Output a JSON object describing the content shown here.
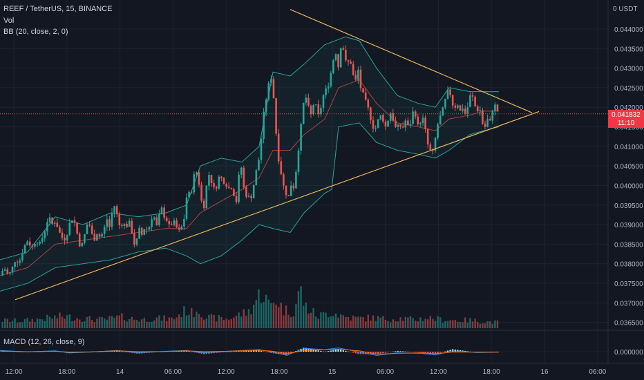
{
  "header": {
    "symbol": "REEF / TetherUS, 15, BINANCE",
    "vol_label": "Vol",
    "bb_label": "BB (20, close, 2, 0)",
    "macd_label": "MACD (12, 26, close, 9)"
  },
  "price_tag": {
    "price": "0.041832",
    "countdown": "11:10"
  },
  "colors": {
    "background": "#131722",
    "up": "#26a69a",
    "down": "#ef5350",
    "bb_band": "#26a69a",
    "bb_basis": "#ef5350",
    "trendline": "#e8b65a",
    "macd_line": "#2196f3",
    "signal_line": "#ff6d00"
  },
  "chart_data": [
    {
      "type": "candlestick",
      "title": "REEF / TetherUS, 15, BINANCE",
      "x_ticks": [
        "12:00",
        "18:00",
        "14",
        "06:00",
        "12:00",
        "18:00",
        "15",
        "06:00",
        "12:00",
        "18:00",
        "16",
        "06:00"
      ],
      "y_ticks": [
        "0.044000",
        "0.043500",
        "0.043000",
        "0.042500",
        "0.042000",
        "0.041500",
        "0.041000",
        "0.040500",
        "0.040000",
        "0.039500",
        "0.039000",
        "0.038500",
        "0.038000",
        "0.037500",
        "0.037000",
        "0.036500"
      ],
      "y_axis_top_label": "0 USDT",
      "ylim": [
        0.0363,
        0.0446
      ],
      "last_price": 0.041832,
      "close_path": [
        [
          0,
          0.0377
        ],
        [
          6,
          0.0379
        ],
        [
          12,
          0.0377
        ],
        [
          16,
          0.0378
        ],
        [
          22,
          0.0381
        ],
        [
          28,
          0.03805
        ],
        [
          34,
          0.0384
        ],
        [
          40,
          0.0386
        ],
        [
          46,
          0.0384
        ],
        [
          52,
          0.0386
        ],
        [
          58,
          0.0385
        ],
        [
          64,
          0.0388
        ],
        [
          70,
          0.0392
        ],
        [
          76,
          0.039
        ],
        [
          80,
          0.0391
        ],
        [
          86,
          0.0388
        ],
        [
          92,
          0.0386
        ],
        [
          96,
          0.0387
        ],
        [
          100,
          0.039
        ],
        [
          106,
          0.0392
        ],
        [
          110,
          0.0389
        ],
        [
          115,
          0.0385
        ],
        [
          120,
          0.0385
        ],
        [
          124,
          0.0389
        ],
        [
          128,
          0.0391
        ],
        [
          132,
          0.0388
        ],
        [
          136,
          0.0386
        ],
        [
          140,
          0.0388
        ],
        [
          144,
          0.0387
        ],
        [
          150,
          0.0388
        ],
        [
          154,
          0.0392
        ],
        [
          158,
          0.0389
        ],
        [
          162,
          0.0393
        ],
        [
          166,
          0.0395
        ],
        [
          170,
          0.0392
        ],
        [
          174,
          0.0389
        ],
        [
          178,
          0.0391
        ],
        [
          182,
          0.0389
        ],
        [
          186,
          0.0391
        ],
        [
          190,
          0.0389
        ],
        [
          194,
          0.0385
        ],
        [
          198,
          0.0386
        ],
        [
          202,
          0.0389
        ],
        [
          206,
          0.0387
        ],
        [
          210,
          0.039
        ],
        [
          214,
          0.0388
        ],
        [
          218,
          0.0391
        ],
        [
          222,
          0.0393
        ],
        [
          226,
          0.0389
        ],
        [
          230,
          0.0392
        ],
        [
          234,
          0.0394
        ],
        [
          238,
          0.0392
        ],
        [
          242,
          0.0391
        ],
        [
          246,
          0.0389
        ],
        [
          250,
          0.0391
        ],
        [
          254,
          0.039
        ],
        [
          258,
          0.0388
        ],
        [
          262,
          0.0389
        ],
        [
          266,
          0.0391
        ],
        [
          270,
          0.0397
        ],
        [
          274,
          0.0398
        ],
        [
          278,
          0.0399
        ],
        [
          282,
          0.0404
        ],
        [
          286,
          0.0403
        ],
        [
          290,
          0.0398
        ],
        [
          294,
          0.0393
        ],
        [
          298,
          0.0399
        ],
        [
          302,
          0.0403
        ],
        [
          306,
          0.0401
        ],
        [
          310,
          0.0399
        ],
        [
          314,
          0.04
        ],
        [
          318,
          0.0403
        ],
        [
          322,
          0.0401
        ],
        [
          326,
          0.0401
        ],
        [
          330,
          0.0399
        ],
        [
          334,
          0.04
        ],
        [
          338,
          0.0398
        ],
        [
          342,
          0.0396
        ],
        [
          346,
          0.0403
        ],
        [
          350,
          0.0405
        ],
        [
          354,
          0.0397
        ],
        [
          358,
          0.0398
        ],
        [
          362,
          0.0396
        ],
        [
          366,
          0.0399
        ],
        [
          370,
          0.0403
        ],
        [
          374,
          0.0406
        ],
        [
          378,
          0.0412
        ],
        [
          382,
          0.0419
        ],
        [
          386,
          0.0423
        ],
        [
          390,
          0.0427
        ],
        [
          394,
          0.0428
        ],
        [
          398,
          0.0417
        ],
        [
          402,
          0.0408
        ],
        [
          406,
          0.0404
        ],
        [
          410,
          0.04
        ],
        [
          414,
          0.0398
        ],
        [
          418,
          0.0397
        ],
        [
          422,
          0.0401
        ],
        [
          426,
          0.0399
        ],
        [
          430,
          0.0407
        ],
        [
          434,
          0.0412
        ],
        [
          438,
          0.042
        ],
        [
          442,
          0.0423
        ],
        [
          446,
          0.042
        ],
        [
          450,
          0.0418
        ],
        [
          454,
          0.0421
        ],
        [
          458,
          0.042
        ],
        [
          462,
          0.0417
        ],
        [
          466,
          0.0422
        ],
        [
          470,
          0.0424
        ],
        [
          474,
          0.0425
        ],
        [
          478,
          0.0428
        ],
        [
          482,
          0.0432
        ],
        [
          486,
          0.0434
        ],
        [
          490,
          0.043
        ],
        [
          494,
          0.0437
        ],
        [
          498,
          0.0434
        ],
        [
          502,
          0.043
        ],
        [
          506,
          0.0433
        ],
        [
          510,
          0.0429
        ],
        [
          514,
          0.0426
        ],
        [
          518,
          0.043
        ],
        [
          522,
          0.0425
        ],
        [
          526,
          0.0423
        ],
        [
          530,
          0.0421
        ],
        [
          534,
          0.0419
        ],
        [
          538,
          0.0416
        ],
        [
          542,
          0.0414
        ],
        [
          546,
          0.0416
        ],
        [
          550,
          0.0418
        ],
        [
          554,
          0.0417
        ],
        [
          558,
          0.0415
        ],
        [
          562,
          0.0417
        ],
        [
          566,
          0.0419
        ],
        [
          570,
          0.0416
        ],
        [
          574,
          0.0414
        ],
        [
          578,
          0.0416
        ],
        [
          582,
          0.0414
        ],
        [
          586,
          0.0417
        ],
        [
          590,
          0.0415
        ],
        [
          594,
          0.0416
        ],
        [
          598,
          0.0419
        ],
        [
          602,
          0.0418
        ],
        [
          606,
          0.0414
        ],
        [
          610,
          0.0418
        ],
        [
          614,
          0.0416
        ],
        [
          618,
          0.0411
        ],
        [
          622,
          0.0409
        ],
        [
          626,
          0.0408
        ],
        [
          630,
          0.0412
        ],
        [
          634,
          0.0416
        ],
        [
          638,
          0.0418
        ],
        [
          642,
          0.042
        ],
        [
          646,
          0.0423
        ],
        [
          650,
          0.0425
        ],
        [
          654,
          0.0421
        ],
        [
          658,
          0.042
        ],
        [
          662,
          0.0421
        ],
        [
          666,
          0.0419
        ],
        [
          670,
          0.042
        ],
        [
          674,
          0.0418
        ],
        [
          678,
          0.0421
        ],
        [
          682,
          0.0424
        ],
        [
          686,
          0.0421
        ],
        [
          690,
          0.0419
        ],
        [
          694,
          0.042
        ],
        [
          698,
          0.0416
        ],
        [
          702,
          0.0415
        ],
        [
          706,
          0.0417
        ],
        [
          710,
          0.0416
        ],
        [
          714,
          0.0421
        ],
        [
          718,
          0.042
        ],
        [
          722,
          0.04183
        ]
      ],
      "bb_upper_path": [
        [
          0,
          0.0381
        ],
        [
          40,
          0.0383
        ],
        [
          80,
          0.0392
        ],
        [
          120,
          0.039
        ],
        [
          160,
          0.0393
        ],
        [
          200,
          0.0392
        ],
        [
          240,
          0.0393
        ],
        [
          270,
          0.0395
        ],
        [
          290,
          0.0405
        ],
        [
          320,
          0.0407
        ],
        [
          350,
          0.0406
        ],
        [
          375,
          0.041
        ],
        [
          395,
          0.0429
        ],
        [
          420,
          0.0428
        ],
        [
          440,
          0.0431
        ],
        [
          470,
          0.0436
        ],
        [
          500,
          0.0438
        ],
        [
          520,
          0.0437
        ],
        [
          545,
          0.043
        ],
        [
          575,
          0.0423
        ],
        [
          605,
          0.0421
        ],
        [
          630,
          0.042
        ],
        [
          650,
          0.0425
        ],
        [
          680,
          0.0424
        ],
        [
          700,
          0.0424
        ],
        [
          722,
          0.0424
        ]
      ],
      "bb_lower_path": [
        [
          0,
          0.0373
        ],
        [
          40,
          0.0375
        ],
        [
          80,
          0.0379
        ],
        [
          120,
          0.038
        ],
        [
          160,
          0.0381
        ],
        [
          200,
          0.0383
        ],
        [
          240,
          0.0384
        ],
        [
          270,
          0.0382
        ],
        [
          290,
          0.038
        ],
        [
          320,
          0.0382
        ],
        [
          350,
          0.0386
        ],
        [
          375,
          0.039
        ],
        [
          395,
          0.0389
        ],
        [
          420,
          0.0388
        ],
        [
          440,
          0.0393
        ],
        [
          470,
          0.0398
        ],
        [
          480,
          0.0399
        ],
        [
          490,
          0.0415
        ],
        [
          520,
          0.0416
        ],
        [
          545,
          0.0411
        ],
        [
          575,
          0.0409
        ],
        [
          605,
          0.0408
        ],
        [
          630,
          0.0407
        ],
        [
          650,
          0.0409
        ],
        [
          680,
          0.0413
        ],
        [
          700,
          0.0414
        ],
        [
          722,
          0.0415
        ]
      ],
      "bb_basis_path": [
        [
          0,
          0.0377
        ],
        [
          40,
          0.0379
        ],
        [
          80,
          0.0385
        ],
        [
          120,
          0.0386
        ],
        [
          160,
          0.0387
        ],
        [
          200,
          0.0388
        ],
        [
          240,
          0.0389
        ],
        [
          270,
          0.0389
        ],
        [
          290,
          0.0393
        ],
        [
          320,
          0.0396
        ],
        [
          350,
          0.0399
        ],
        [
          375,
          0.0402
        ],
        [
          395,
          0.0409
        ],
        [
          420,
          0.0409
        ],
        [
          440,
          0.0413
        ],
        [
          470,
          0.0417
        ],
        [
          490,
          0.0425
        ],
        [
          520,
          0.0427
        ],
        [
          545,
          0.0421
        ],
        [
          575,
          0.0416
        ],
        [
          605,
          0.0415
        ],
        [
          630,
          0.0414
        ],
        [
          650,
          0.0417
        ],
        [
          680,
          0.0418
        ],
        [
          700,
          0.0419
        ],
        [
          722,
          0.0419
        ]
      ],
      "trendlines": [
        {
          "name": "upper",
          "from": [
            420,
            0.0445
          ],
          "to": [
            770,
            0.04186
          ]
        },
        {
          "name": "lower",
          "from": [
            22,
            0.03708
          ],
          "to": [
            780,
            0.04189
          ]
        }
      ]
    },
    {
      "type": "bar",
      "title": "Vol",
      "volume_profile": [
        [
          0,
          12
        ],
        [
          30,
          11
        ],
        [
          60,
          14
        ],
        [
          90,
          18
        ],
        [
          110,
          16
        ],
        [
          130,
          14
        ],
        [
          150,
          13
        ],
        [
          175,
          17
        ],
        [
          200,
          13
        ],
        [
          225,
          15
        ],
        [
          250,
          14
        ],
        [
          270,
          28
        ],
        [
          278,
          22
        ],
        [
          285,
          30
        ],
        [
          300,
          16
        ],
        [
          330,
          14
        ],
        [
          350,
          22
        ],
        [
          360,
          25
        ],
        [
          378,
          55
        ],
        [
          385,
          45
        ],
        [
          390,
          33
        ],
        [
          400,
          45
        ],
        [
          410,
          28
        ],
        [
          425,
          25
        ],
        [
          435,
          60
        ],
        [
          440,
          35
        ],
        [
          460,
          18
        ],
        [
          480,
          25
        ],
        [
          500,
          17
        ],
        [
          520,
          15
        ],
        [
          540,
          16
        ],
        [
          560,
          14
        ],
        [
          580,
          15
        ],
        [
          600,
          13
        ],
        [
          620,
          16
        ],
        [
          640,
          13
        ],
        [
          660,
          12
        ],
        [
          680,
          12
        ],
        [
          700,
          10
        ],
        [
          722,
          9
        ]
      ]
    },
    {
      "type": "histogram",
      "title": "MACD (12, 26, close, 9)",
      "y_ticks": [
        "0.000000"
      ],
      "macd_path": [
        [
          0,
          0.3
        ],
        [
          40,
          -0.05
        ],
        [
          80,
          0.2
        ],
        [
          100,
          -0.3
        ],
        [
          130,
          -0.1
        ],
        [
          170,
          0.3
        ],
        [
          200,
          -0.25
        ],
        [
          240,
          0.1
        ],
        [
          270,
          0.3
        ],
        [
          295,
          -0.3
        ],
        [
          330,
          0.1
        ],
        [
          375,
          0.5
        ],
        [
          395,
          -0.1
        ],
        [
          415,
          -0.9
        ],
        [
          440,
          0.8
        ],
        [
          470,
          0.5
        ],
        [
          490,
          0.9
        ],
        [
          520,
          -0.1
        ],
        [
          545,
          -0.9
        ],
        [
          575,
          -0.3
        ],
        [
          610,
          -0.4
        ],
        [
          630,
          -0.8
        ],
        [
          655,
          0.2
        ],
        [
          690,
          -0.2
        ],
        [
          722,
          -0.1
        ]
      ],
      "signal_path": [
        [
          0,
          0.15
        ],
        [
          40,
          0.0
        ],
        [
          80,
          0.1
        ],
        [
          100,
          -0.1
        ],
        [
          130,
          -0.05
        ],
        [
          170,
          0.2
        ],
        [
          200,
          0.0
        ],
        [
          240,
          0.05
        ],
        [
          270,
          0.2
        ],
        [
          295,
          0.0
        ],
        [
          330,
          0.1
        ],
        [
          375,
          0.35
        ],
        [
          395,
          0.1
        ],
        [
          415,
          -0.5
        ],
        [
          440,
          0.3
        ],
        [
          470,
          0.5
        ],
        [
          490,
          0.6
        ],
        [
          520,
          0.2
        ],
        [
          545,
          -0.6
        ],
        [
          575,
          -0.4
        ],
        [
          610,
          -0.3
        ],
        [
          630,
          -0.5
        ],
        [
          655,
          -0.1
        ],
        [
          690,
          -0.1
        ],
        [
          722,
          -0.1
        ]
      ]
    }
  ]
}
